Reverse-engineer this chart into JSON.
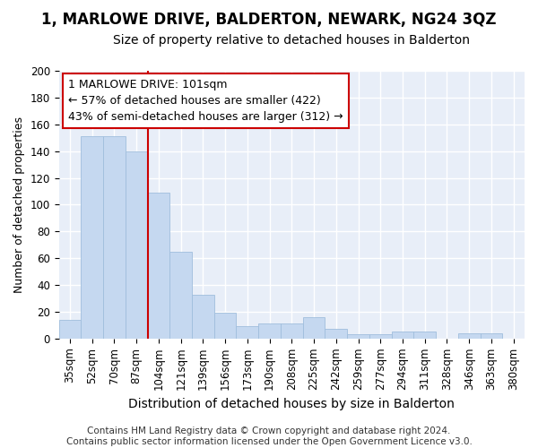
{
  "title": "1, MARLOWE DRIVE, BALDERTON, NEWARK, NG24 3QZ",
  "subtitle": "Size of property relative to detached houses in Balderton",
  "xlabel": "Distribution of detached houses by size in Balderton",
  "ylabel": "Number of detached properties",
  "categories": [
    "35sqm",
    "52sqm",
    "70sqm",
    "87sqm",
    "104sqm",
    "121sqm",
    "139sqm",
    "156sqm",
    "173sqm",
    "190sqm",
    "208sqm",
    "225sqm",
    "242sqm",
    "259sqm",
    "277sqm",
    "294sqm",
    "311sqm",
    "328sqm",
    "346sqm",
    "363sqm",
    "380sqm"
  ],
  "values": [
    14,
    151,
    151,
    140,
    109,
    65,
    33,
    19,
    9,
    11,
    11,
    16,
    7,
    3,
    3,
    5,
    5,
    0,
    4,
    4,
    0
  ],
  "bar_color": "#c5d8f0",
  "bar_edge_color": "#a0bedd",
  "background_color": "#e8eef8",
  "grid_color": "#ffffff",
  "red_line_index": 4,
  "annotation_text": "1 MARLOWE DRIVE: 101sqm\n← 57% of detached houses are smaller (422)\n43% of semi-detached houses are larger (312) →",
  "annotation_box_color": "#ffffff",
  "annotation_box_edge": "#cc0000",
  "ylim": [
    0,
    200
  ],
  "yticks": [
    0,
    20,
    40,
    60,
    80,
    100,
    120,
    140,
    160,
    180,
    200
  ],
  "footnote": "Contains HM Land Registry data © Crown copyright and database right 2024.\nContains public sector information licensed under the Open Government Licence v3.0.",
  "title_fontsize": 12,
  "subtitle_fontsize": 10,
  "xlabel_fontsize": 10,
  "ylabel_fontsize": 9,
  "tick_fontsize": 8.5,
  "annotation_fontsize": 9,
  "footnote_fontsize": 7.5
}
